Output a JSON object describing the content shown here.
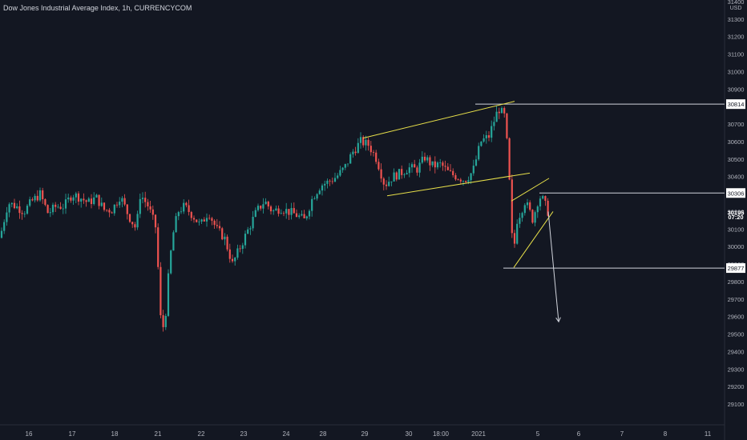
{
  "header": {
    "title": "Dow Jones Industrial Average Index, 1h, CURRENCYCOM"
  },
  "colors": {
    "background": "#131722",
    "up": "#26a69a",
    "down": "#ef5350",
    "drawing": "#e8e04a",
    "line": "#d1d4dc",
    "axis_text": "#b2b5be"
  },
  "chart_data": {
    "type": "candlestick",
    "title": "Dow Jones Industrial Average Index, 1h, CURRENCYCOM",
    "currency": "USD",
    "ylim": [
      29100,
      31400
    ],
    "y_ticks": [
      "31400",
      "31300",
      "31200",
      "31100",
      "31000",
      "30900",
      "30800",
      "30700",
      "30600",
      "30500",
      "30400",
      "30300",
      "30200",
      "30100",
      "30000",
      "29900",
      "29800",
      "29700",
      "29600",
      "29500",
      "29400",
      "29300",
      "29200",
      "29100"
    ],
    "x_ticks": [
      "16",
      "17",
      "18",
      "21",
      "22",
      "23",
      "24",
      "28",
      "29",
      "30",
      "18:00",
      "2021",
      "5",
      "6",
      "7",
      "8",
      "11"
    ],
    "price_labels": [
      {
        "text": "30814",
        "value": 30814
      },
      {
        "text": "30306",
        "value": 30306
      },
      {
        "text": "30195",
        "value": 30195
      },
      {
        "text": "07:20",
        "value": 30170
      },
      {
        "text": "29877",
        "value": 29877
      }
    ],
    "path": [
      {
        "x": 0,
        "y": 30050
      },
      {
        "x": 10,
        "y": 30250
      },
      {
        "x": 20,
        "y": 30230
      },
      {
        "x": 30,
        "y": 30200
      },
      {
        "x": 40,
        "y": 30260
      },
      {
        "x": 50,
        "y": 30300
      },
      {
        "x": 60,
        "y": 30190
      },
      {
        "x": 70,
        "y": 30230
      },
      {
        "x": 80,
        "y": 30230
      },
      {
        "x": 90,
        "y": 30300
      },
      {
        "x": 100,
        "y": 30280
      },
      {
        "x": 110,
        "y": 30250
      },
      {
        "x": 120,
        "y": 30280
      },
      {
        "x": 130,
        "y": 30210
      },
      {
        "x": 140,
        "y": 30210
      },
      {
        "x": 150,
        "y": 30290
      },
      {
        "x": 160,
        "y": 30180
      },
      {
        "x": 170,
        "y": 30100
      },
      {
        "x": 175,
        "y": 30300
      },
      {
        "x": 185,
        "y": 30230
      },
      {
        "x": 195,
        "y": 30100
      },
      {
        "x": 200,
        "y": 29600
      },
      {
        "x": 205,
        "y": 29520
      },
      {
        "x": 210,
        "y": 29820
      },
      {
        "x": 215,
        "y": 30050
      },
      {
        "x": 222,
        "y": 30200
      },
      {
        "x": 230,
        "y": 30230
      },
      {
        "x": 240,
        "y": 30180
      },
      {
        "x": 250,
        "y": 30120
      },
      {
        "x": 260,
        "y": 30200
      },
      {
        "x": 270,
        "y": 30100
      },
      {
        "x": 280,
        "y": 30050
      },
      {
        "x": 290,
        "y": 29900
      },
      {
        "x": 300,
        "y": 30000
      },
      {
        "x": 310,
        "y": 30100
      },
      {
        "x": 320,
        "y": 30200
      },
      {
        "x": 330,
        "y": 30260
      },
      {
        "x": 340,
        "y": 30200
      },
      {
        "x": 350,
        "y": 30220
      },
      {
        "x": 360,
        "y": 30200
      },
      {
        "x": 370,
        "y": 30180
      },
      {
        "x": 380,
        "y": 30150
      },
      {
        "x": 390,
        "y": 30280
      },
      {
        "x": 400,
        "y": 30350
      },
      {
        "x": 410,
        "y": 30370
      },
      {
        "x": 420,
        "y": 30400
      },
      {
        "x": 430,
        "y": 30450
      },
      {
        "x": 440,
        "y": 30540
      },
      {
        "x": 450,
        "y": 30600
      },
      {
        "x": 460,
        "y": 30580
      },
      {
        "x": 470,
        "y": 30500
      },
      {
        "x": 480,
        "y": 30350
      },
      {
        "x": 490,
        "y": 30400
      },
      {
        "x": 500,
        "y": 30420
      },
      {
        "x": 510,
        "y": 30450
      },
      {
        "x": 520,
        "y": 30440
      },
      {
        "x": 530,
        "y": 30510
      },
      {
        "x": 540,
        "y": 30460
      },
      {
        "x": 550,
        "y": 30470
      },
      {
        "x": 560,
        "y": 30420
      },
      {
        "x": 570,
        "y": 30400
      },
      {
        "x": 580,
        "y": 30380
      },
      {
        "x": 590,
        "y": 30430
      },
      {
        "x": 600,
        "y": 30600
      },
      {
        "x": 610,
        "y": 30630
      },
      {
        "x": 615,
        "y": 30700
      },
      {
        "x": 622,
        "y": 30790
      },
      {
        "x": 630,
        "y": 30740
      },
      {
        "x": 634,
        "y": 30500
      },
      {
        "x": 637,
        "y": 30250
      },
      {
        "x": 640,
        "y": 29930
      },
      {
        "x": 645,
        "y": 30150
      },
      {
        "x": 650,
        "y": 30200
      },
      {
        "x": 655,
        "y": 30260
      },
      {
        "x": 660,
        "y": 30210
      },
      {
        "x": 665,
        "y": 30150
      },
      {
        "x": 670,
        "y": 30250
      },
      {
        "x": 675,
        "y": 30290
      },
      {
        "x": 680,
        "y": 30240
      },
      {
        "x": 684,
        "y": 30195
      }
    ],
    "horizontal_lines": [
      {
        "value": 30814,
        "x_start": 593
      },
      {
        "value": 30306,
        "x_start": 673
      },
      {
        "value": 29877,
        "x_start": 628
      }
    ],
    "trendlines": [
      {
        "from": {
          "x": 453,
          "y": 30620
        },
        "to": {
          "x": 642,
          "y": 30830
        }
      },
      {
        "from": {
          "x": 483,
          "y": 30290
        },
        "to": {
          "x": 661,
          "y": 30420
        }
      },
      {
        "from": {
          "x": 638,
          "y": 30260
        },
        "to": {
          "x": 685,
          "y": 30390
        }
      },
      {
        "from": {
          "x": 641,
          "y": 29880
        },
        "to": {
          "x": 690,
          "y": 30200
        }
      }
    ],
    "arrow": {
      "from": {
        "x": 684,
        "y": 30200
      },
      "to": {
        "x": 697,
        "y": 29570
      }
    },
    "grid": false,
    "x_range": [
      0,
      885
    ]
  }
}
